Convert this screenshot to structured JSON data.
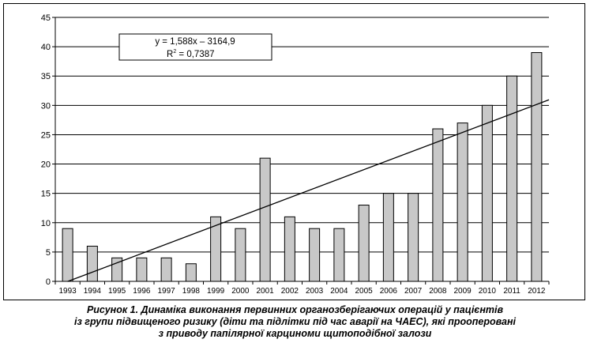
{
  "chart_data": {
    "type": "bar",
    "categories": [
      "1993",
      "1994",
      "1995",
      "1996",
      "1997",
      "1998",
      "1999",
      "2000",
      "2001",
      "2002",
      "2003",
      "2004",
      "2005",
      "2006",
      "2007",
      "2008",
      "2009",
      "2010",
      "2011",
      "2012"
    ],
    "values": [
      9,
      6,
      4,
      4,
      4,
      3,
      11,
      9,
      21,
      11,
      9,
      9,
      13,
      15,
      15,
      26,
      27,
      30,
      35,
      39
    ],
    "ylim": [
      0,
      45
    ],
    "yticks": [
      0,
      5,
      10,
      15,
      20,
      25,
      30,
      35,
      40,
      45
    ],
    "grid": "horizontal",
    "bar_color": "#c8c8c8",
    "trendline": {
      "type": "linear",
      "slope": 1.588,
      "intercept": -3164.9,
      "equation_label": "y = 1,588x – 3164,9",
      "r2_label": "R",
      "r2_superscript": "2",
      "r2_value": " =  0,7387"
    }
  },
  "caption": {
    "line1": "Рисунок 1. Динаміка виконання первинних органозберігаючих операцій у пацієнтів",
    "line2": "із групи підвищеного ризику (діти та підлітки під час аварії на ЧАЕС), які прооперовані",
    "line3": "з приводу папілярної карциноми щитоподібної залози"
  }
}
